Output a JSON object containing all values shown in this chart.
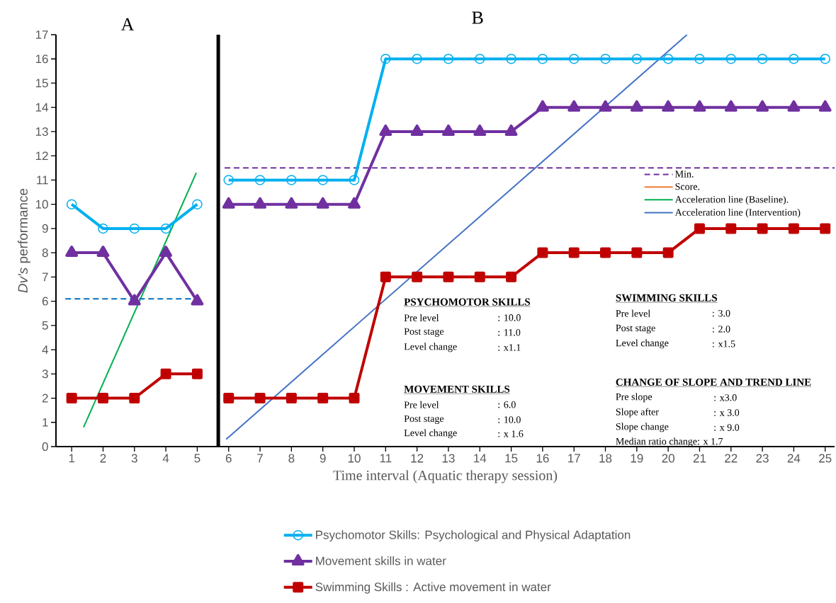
{
  "chart_data": {
    "type": "line",
    "xlabel": "Time interval (Aquatic therapy session)",
    "ylabel": "*Dv's* performance",
    "xlim": [
      0.5,
      25.3
    ],
    "ylim": [
      0,
      17
    ],
    "xticks": [
      1,
      2,
      3,
      4,
      5,
      6,
      7,
      8,
      9,
      10,
      11,
      12,
      13,
      14,
      15,
      16,
      17,
      18,
      19,
      20,
      21,
      22,
      23,
      24,
      25
    ],
    "yticks": [
      0,
      1,
      2,
      3,
      4,
      5,
      6,
      7,
      8,
      9,
      10,
      11,
      12,
      13,
      14,
      15,
      16,
      17
    ],
    "legend": "bottom",
    "series": [
      {
        "name": "Psychomotor Skills: Psychological and Physical Adaptation",
        "color": "#00b0f0",
        "marker": "circle",
        "x": [
          1,
          2,
          3,
          4,
          5,
          5.5,
          6,
          7,
          8,
          9,
          10,
          11,
          12,
          13,
          14,
          15,
          16,
          17,
          18,
          19,
          20,
          21,
          22,
          23,
          24,
          25
        ],
        "values": [
          10,
          9,
          9,
          9,
          10,
          null,
          11,
          11,
          11,
          11,
          11,
          16,
          16,
          16,
          16,
          16,
          16,
          16,
          16,
          16,
          16,
          16,
          16,
          16,
          16,
          16
        ]
      },
      {
        "name": "Movement skills in water",
        "color": "#7030a0",
        "marker": "triangle",
        "x": [
          1,
          2,
          3,
          4,
          5,
          5.5,
          6,
          7,
          8,
          9,
          10,
          11,
          12,
          13,
          14,
          15,
          16,
          17,
          18,
          19,
          20,
          21,
          22,
          23,
          24,
          25
        ],
        "values": [
          8,
          8,
          6,
          8,
          6,
          null,
          10,
          10,
          10,
          10,
          10,
          13,
          13,
          13,
          13,
          13,
          14,
          14,
          14,
          14,
          14,
          14,
          14,
          14,
          14,
          14
        ]
      },
      {
        "name": "Swimming Skills : Active movement in water",
        "color": "#c00000",
        "marker": "square",
        "x": [
          1,
          2,
          3,
          4,
          5,
          5.5,
          6,
          7,
          8,
          9,
          10,
          11,
          12,
          13,
          14,
          15,
          16,
          17,
          18,
          19,
          20,
          21,
          22,
          23,
          24,
          25
        ],
        "values": [
          2,
          2,
          2,
          3,
          3,
          null,
          2,
          2,
          2,
          2,
          2,
          7,
          7,
          7,
          7,
          7,
          8,
          8,
          8,
          8,
          8,
          9,
          9,
          9,
          9,
          9
        ]
      },
      {
        "name": "Min.",
        "color": "#7030a0",
        "line_style": "dashed",
        "x": [
          5.87,
          25.3
        ],
        "values": [
          11.5,
          11.5
        ]
      },
      {
        "name": "Score.",
        "color": "#ed7d31"
      },
      {
        "name": "Acceleration line (Baseline).",
        "color": "#00b050",
        "x": [
          1.38,
          4.97
        ],
        "values": [
          0.8,
          11.3
        ]
      },
      {
        "name": "Acceleration line (Intervention)",
        "color": "#4472c4",
        "x": [
          5.92,
          20.6
        ],
        "values": [
          0.3,
          17
        ]
      },
      {
        "color": "#0070c0",
        "line_style": "dashed",
        "x": [
          0.8,
          5.06
        ],
        "values": [
          6.1,
          6.1
        ]
      }
    ],
    "ref_lines": [
      {
        "axis": "x",
        "value": 5.67,
        "color": "#000000"
      }
    ],
    "annotations": [
      "A",
      "B",
      "PSYCHOMOTOR SKILLS",
      "Pre level",
      ": 10.0",
      "Post stage",
      ": 11.0",
      "Level change",
      ": x1.1",
      "SWIMMING SKILLS",
      "Pre level",
      ": 3.0",
      "Post stage",
      ": 2.0",
      "Level change",
      ": x1.5",
      "MOVEMENT SKILLS",
      "Pre level",
      ": 6.0",
      "Post stage",
      ": 10.0",
      "Level change",
      ": x 1.6",
      "CHANGE OF SLOPE AND TREND LINE",
      "Pre slope",
      ": x3.0",
      "Slope after",
      ": x 3.0",
      "Slope change",
      ": x 9.0",
      "Median ratio change: x 1.7"
    ]
  }
}
